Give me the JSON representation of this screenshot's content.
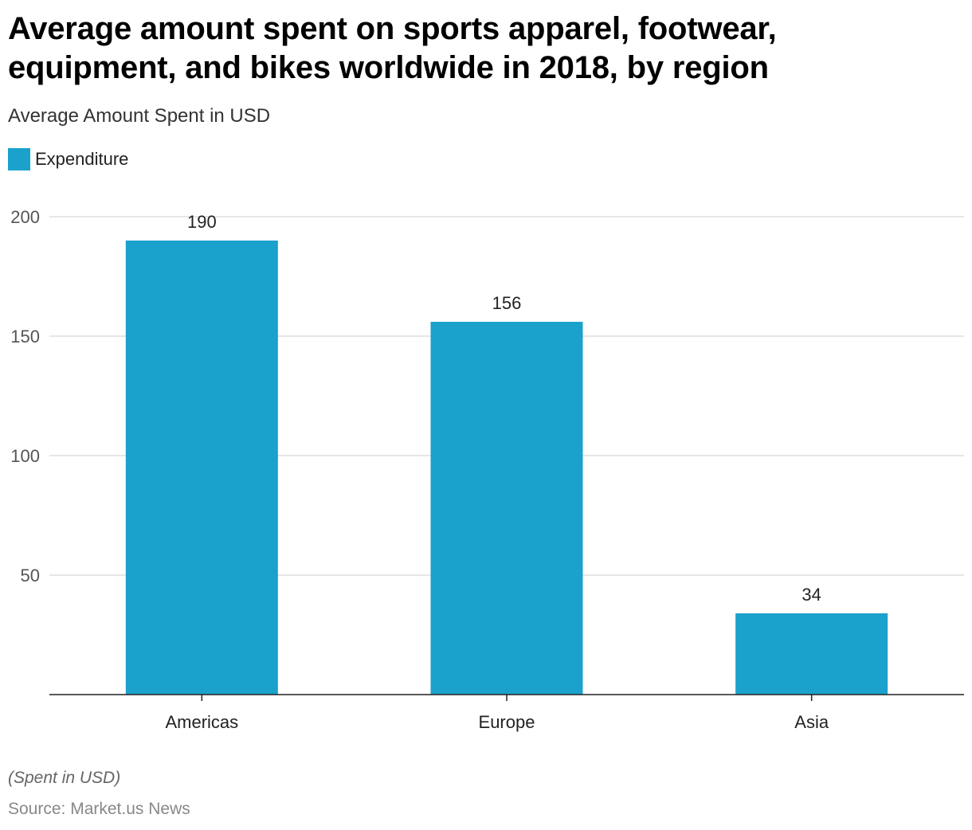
{
  "chart_data": {
    "type": "bar",
    "title": "Average amount spent on sports apparel, footwear, equipment, and bikes worldwide in 2018, by region",
    "subtitle": "Average Amount Spent in USD",
    "categories": [
      "Americas",
      "Europe",
      "Asia"
    ],
    "series": [
      {
        "name": "Expenditure",
        "values": [
          190,
          156,
          34
        ],
        "color": "#1aa1cc"
      }
    ],
    "ylim": [
      0,
      200
    ],
    "yticks": [
      50,
      100,
      150,
      200
    ],
    "grid": true,
    "legend_position": "top-left",
    "xlabel": "",
    "ylabel": "",
    "note": "(Spent in USD)",
    "source": "Source: Market.us News"
  }
}
